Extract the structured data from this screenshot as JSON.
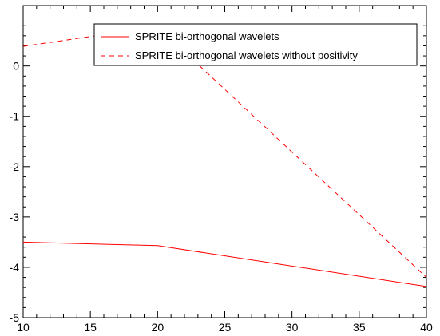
{
  "chart_data": {
    "type": "line",
    "title": "",
    "xlabel": "",
    "ylabel": "",
    "xlim": [
      10,
      40
    ],
    "ylim": [
      -5,
      1.2
    ],
    "x_ticks": [
      10,
      15,
      20,
      25,
      30,
      35,
      40
    ],
    "y_ticks": [
      0,
      -1,
      -2,
      -3,
      -4,
      -5
    ],
    "grid": false,
    "legend_position": "top-right",
    "series": [
      {
        "name": "SPRITE bi-orthogonal wavelets",
        "style": "solid",
        "color": "#ff0000",
        "x": [
          10,
          20,
          40
        ],
        "y": [
          -3.5,
          -3.57,
          -4.38
        ]
      },
      {
        "name": "SPRITE bi-orthogonal wavelets without positivity",
        "style": "dashed",
        "color": "#ff0000",
        "x": [
          10,
          20,
          40
        ],
        "y": [
          0.39,
          0.78,
          -4.2
        ]
      }
    ]
  }
}
